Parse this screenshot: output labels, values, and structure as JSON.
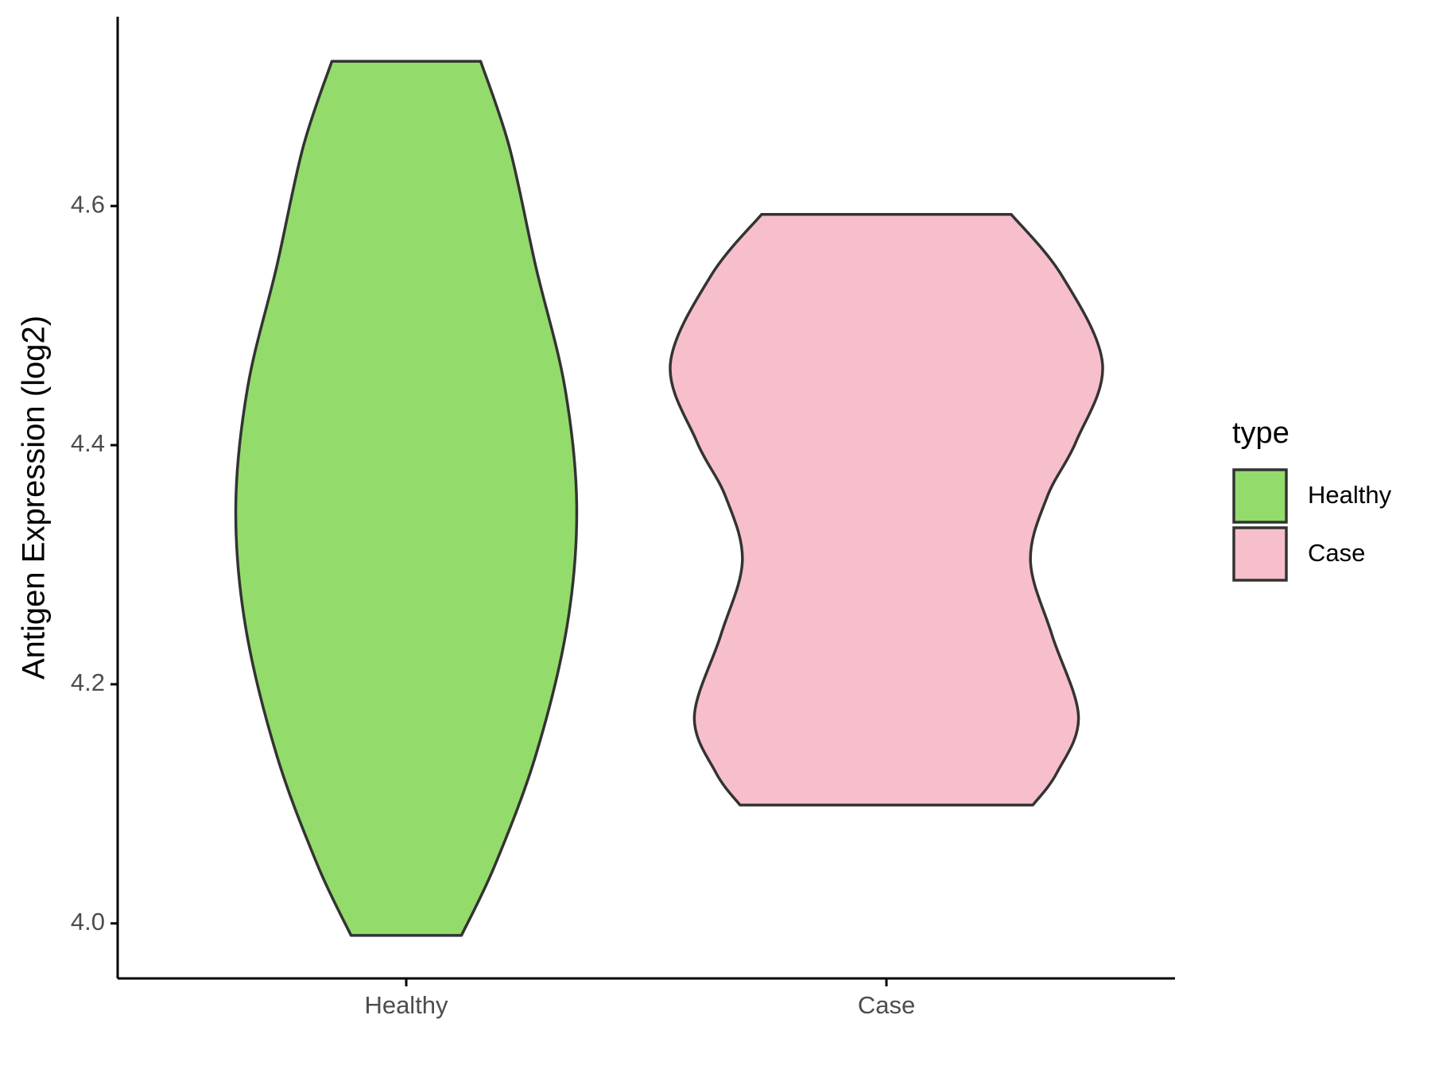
{
  "chart_data": {
    "type": "violin",
    "ylabel": "Antigen Expression (log2)",
    "categories": [
      "Healthy",
      "Case"
    ],
    "legend_title": "type",
    "legend": "right",
    "ylim": [
      3.954,
      4.757
    ],
    "yticks": [
      {
        "value": 4,
        "label": "4.0"
      },
      4.2,
      4.4,
      4.6
    ],
    "series": [
      {
        "name": "Healthy",
        "color": "#93dc6b",
        "y": [
          4.721,
          4.649,
          4.549,
          4.449,
          4.349,
          4.249,
          4.141,
          4.049,
          3.99
        ],
        "width": [
          0.31,
          0.43,
          0.54,
          0.66,
          0.71,
          0.67,
          0.54,
          0.37,
          0.23
        ]
      },
      {
        "name": "Case",
        "color": "#f7bfcb",
        "y": [
          4.593,
          4.542,
          4.468,
          4.403,
          4.357,
          4.303,
          4.241,
          4.173,
          4.126,
          4.099
        ],
        "width": [
          0.52,
          0.73,
          0.9,
          0.79,
          0.67,
          0.6,
          0.69,
          0.8,
          0.71,
          0.61
        ]
      }
    ]
  }
}
